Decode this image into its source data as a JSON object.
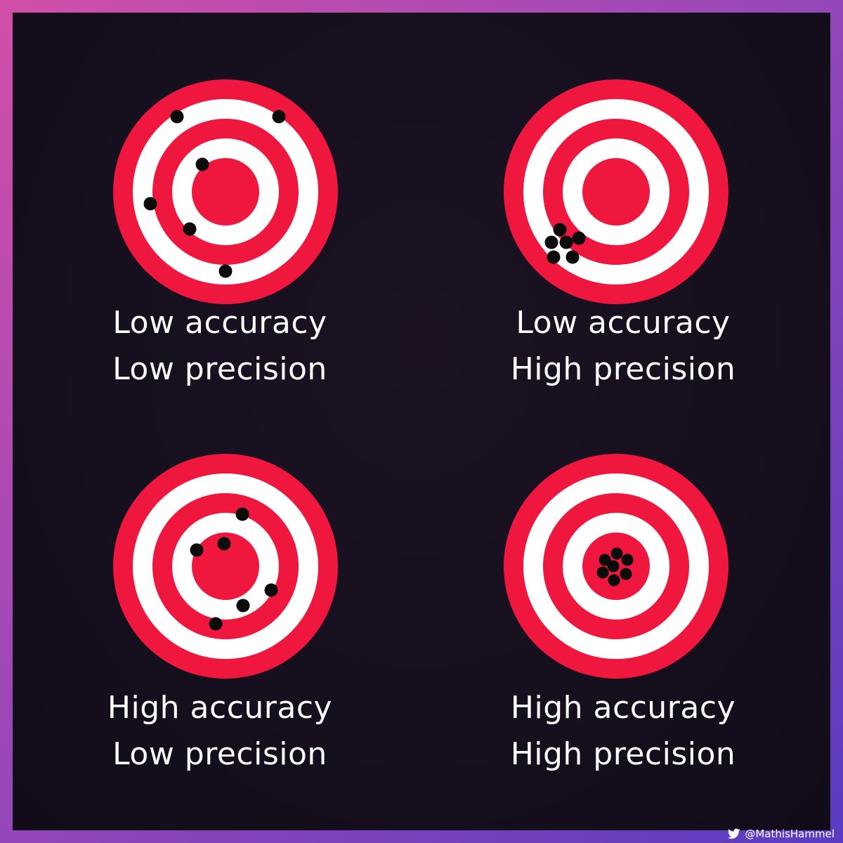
{
  "colors": {
    "ring_red": "#f0173f",
    "ring_white": "#ffffff",
    "shot": "#0b0b0b",
    "caption": "#ffffff"
  },
  "panels": [
    {
      "line1": "Low accuracy",
      "line2": "Low precision"
    },
    {
      "line1": "Low accuracy",
      "line2": "High precision"
    },
    {
      "line1": "High accuracy",
      "line2": "Low precision"
    },
    {
      "line1": "High accuracy",
      "line2": "High precision"
    }
  ],
  "credit": {
    "handle": "@MathisHammel",
    "icon": "bird-icon"
  }
}
